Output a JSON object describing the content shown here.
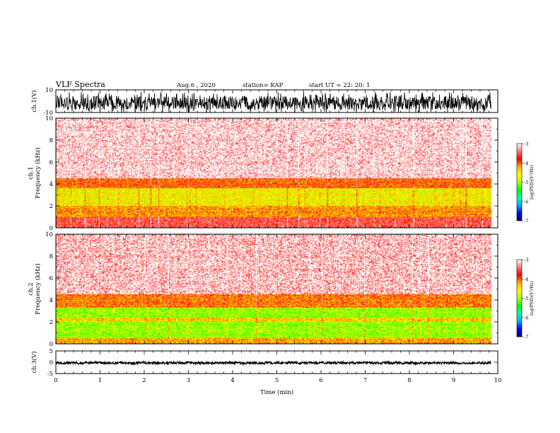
{
  "header": {
    "title": "VLF Spectra",
    "date": "Aug.6  , 2020",
    "station": "station= KAP",
    "start": "start  UT  =   22: 20: 1"
  },
  "colors": {
    "colormap": [
      "#000080",
      "#0000ff",
      "#00aaff",
      "#00ffaa",
      "#00ff00",
      "#aaff00",
      "#ffff00",
      "#ffaa00",
      "#ff0000",
      "#ff7777",
      "#ffffff"
    ],
    "trace": "#000000"
  },
  "chart_data": [
    {
      "type": "line",
      "name": "ch1-waveform",
      "ylabel": "ch.1(V)",
      "ylim": [
        -10,
        10
      ],
      "yticks": [
        "10",
        "-10"
      ],
      "xlim": [
        0,
        10
      ],
      "grid": false
    },
    {
      "type": "heatmap",
      "name": "ch1-spectrogram",
      "ylabel": "ch.1",
      "ylabel2": "Frequency  (kHz)",
      "ylim": [
        0,
        10
      ],
      "yticks": [
        "0",
        "2",
        "4",
        "6",
        "8",
        "10"
      ],
      "xlim": [
        0,
        10
      ],
      "data_end_min": 9.85,
      "bands": [
        {
          "from_khz": 0.0,
          "to_khz": 1.0,
          "log_psd": -3.6
        },
        {
          "from_khz": 1.0,
          "to_khz": 2.0,
          "log_psd": -4.2
        },
        {
          "from_khz": 2.0,
          "to_khz": 3.6,
          "log_psd": -4.6
        },
        {
          "from_khz": 3.6,
          "to_khz": 4.5,
          "log_psd": -4.0
        },
        {
          "from_khz": 4.5,
          "to_khz": 10.0,
          "log_psd": -3.3
        }
      ],
      "colorbar": {
        "range": [
          -7,
          -3
        ],
        "ticks": [
          "-3",
          "-4",
          "-5",
          "-6",
          "-7"
        ],
        "label": "log(PSD)(V²/Hz)"
      }
    },
    {
      "type": "heatmap",
      "name": "ch2-spectrogram",
      "ylabel": "ch.2",
      "ylabel2": "Frequency  (kHz)",
      "ylim": [
        0,
        10
      ],
      "yticks": [
        "0",
        "2",
        "4",
        "6",
        "8",
        "10"
      ],
      "xlim": [
        0,
        10
      ],
      "data_end_min": 9.85,
      "bands": [
        {
          "from_khz": 0.0,
          "to_khz": 0.5,
          "log_psd": -4.3
        },
        {
          "from_khz": 0.5,
          "to_khz": 2.0,
          "log_psd": -5.0
        },
        {
          "from_khz": 2.0,
          "to_khz": 2.4,
          "log_psd": -4.5
        },
        {
          "from_khz": 2.4,
          "to_khz": 3.3,
          "log_psd": -5.0
        },
        {
          "from_khz": 3.3,
          "to_khz": 4.6,
          "log_psd": -4.1
        },
        {
          "from_khz": 4.6,
          "to_khz": 10.0,
          "log_psd": -3.4
        }
      ],
      "colorbar": {
        "range": [
          -7,
          -3
        ],
        "ticks": [
          "-3",
          "-4",
          "-5",
          "-6",
          "-7"
        ],
        "label": "log(PSD)(V²/Hz)"
      }
    },
    {
      "type": "line",
      "name": "ch3-waveform",
      "ylabel": "ch.3(V)",
      "ylim": [
        -5,
        5
      ],
      "yticks": [
        "5",
        "0",
        "-5"
      ],
      "xlim": [
        0,
        10
      ],
      "grid": false,
      "xlabel": "Time  (min)",
      "xticks": [
        "0",
        "1",
        "2",
        "3",
        "4",
        "5",
        "6",
        "7",
        "8",
        "9",
        "10"
      ]
    }
  ]
}
